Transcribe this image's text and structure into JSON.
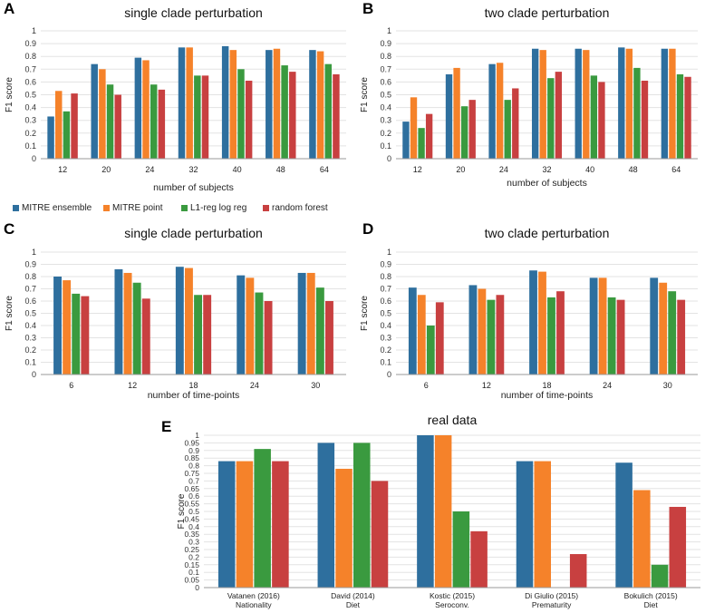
{
  "colors": {
    "MITRE ensemble": "#2e6f9e",
    "MITRE point": "#f5822a",
    "L1-reg log reg": "#3a9a3f",
    "random forest": "#c84040"
  },
  "legend": [
    {
      "name": "MITRE ensemble",
      "color": "#2e6f9e"
    },
    {
      "name": "MITRE point",
      "color": "#f5822a"
    },
    {
      "name": "L1-reg log reg",
      "color": "#3a9a3f"
    },
    {
      "name": "random forest",
      "color": "#c84040"
    }
  ],
  "panels": [
    {
      "letter": "A"
    },
    {
      "letter": "B"
    },
    {
      "letter": "C"
    },
    {
      "letter": "D"
    },
    {
      "letter": "E"
    }
  ],
  "chart_data": [
    {
      "type": "bar",
      "panel": "A",
      "title": "single clade perturbation",
      "xlabel": "number of subjects",
      "ylabel": "F1 score",
      "ylim": [
        0,
        1
      ],
      "yticks": [
        "0",
        "0.1",
        "0.2",
        "0.3",
        "0.4",
        "0.5",
        "0.6",
        "0.7",
        "0.8",
        "0.9",
        "1"
      ],
      "categories": [
        "12",
        "20",
        "24",
        "32",
        "40",
        "48",
        "64"
      ],
      "series": [
        {
          "name": "MITRE ensemble",
          "values": [
            0.33,
            0.74,
            0.79,
            0.87,
            0.88,
            0.85,
            0.85
          ]
        },
        {
          "name": "MITRE point",
          "values": [
            0.53,
            0.7,
            0.77,
            0.87,
            0.85,
            0.86,
            0.84
          ]
        },
        {
          "name": "L1-reg log reg",
          "values": [
            0.37,
            0.58,
            0.58,
            0.65,
            0.7,
            0.73,
            0.74
          ]
        },
        {
          "name": "random forest",
          "values": [
            0.51,
            0.5,
            0.54,
            0.65,
            0.61,
            0.68,
            0.66
          ]
        }
      ]
    },
    {
      "type": "bar",
      "panel": "B",
      "title": "two clade perturbation",
      "xlabel": "number of subjects",
      "ylabel": "F1 score",
      "ylim": [
        0,
        1
      ],
      "yticks": [
        "0",
        "0.1",
        "0.2",
        "0.3",
        "0.4",
        "0.5",
        "0.6",
        "0.7",
        "0.8",
        "0.9",
        "1"
      ],
      "categories": [
        "12",
        "20",
        "24",
        "32",
        "40",
        "48",
        "64"
      ],
      "series": [
        {
          "name": "MITRE ensemble",
          "values": [
            0.29,
            0.66,
            0.74,
            0.86,
            0.86,
            0.87,
            0.86
          ]
        },
        {
          "name": "MITRE point",
          "values": [
            0.48,
            0.71,
            0.75,
            0.85,
            0.85,
            0.86,
            0.86
          ]
        },
        {
          "name": "L1-reg log reg",
          "values": [
            0.24,
            0.41,
            0.46,
            0.63,
            0.65,
            0.71,
            0.66
          ]
        },
        {
          "name": "random forest",
          "values": [
            0.35,
            0.46,
            0.55,
            0.68,
            0.6,
            0.61,
            0.64
          ]
        }
      ]
    },
    {
      "type": "bar",
      "panel": "C",
      "title": "single clade perturbation",
      "xlabel": "number of time-points",
      "ylabel": "F1 score",
      "ylim": [
        0,
        1
      ],
      "yticks": [
        "0",
        "0.1",
        "0.2",
        "0.3",
        "0.4",
        "0.5",
        "0.6",
        "0.7",
        "0.8",
        "0.9",
        "1"
      ],
      "categories": [
        "6",
        "12",
        "18",
        "24",
        "30"
      ],
      "series": [
        {
          "name": "MITRE ensemble",
          "values": [
            0.8,
            0.86,
            0.88,
            0.81,
            0.83
          ]
        },
        {
          "name": "MITRE point",
          "values": [
            0.77,
            0.83,
            0.87,
            0.79,
            0.83
          ]
        },
        {
          "name": "L1-reg log reg",
          "values": [
            0.66,
            0.75,
            0.65,
            0.67,
            0.71
          ]
        },
        {
          "name": "random forest",
          "values": [
            0.64,
            0.62,
            0.65,
            0.6,
            0.6
          ]
        }
      ]
    },
    {
      "type": "bar",
      "panel": "D",
      "title": "two clade perturbation",
      "xlabel": "number of time-points",
      "ylabel": "F1 score",
      "ylim": [
        0,
        1
      ],
      "yticks": [
        "0",
        "0.1",
        "0.2",
        "0.3",
        "0.4",
        "0.5",
        "0.6",
        "0.7",
        "0.8",
        "0.9",
        "1"
      ],
      "categories": [
        "6",
        "12",
        "18",
        "24",
        "30"
      ],
      "series": [
        {
          "name": "MITRE ensemble",
          "values": [
            0.71,
            0.73,
            0.85,
            0.79,
            0.79
          ]
        },
        {
          "name": "MITRE point",
          "values": [
            0.65,
            0.7,
            0.84,
            0.79,
            0.75
          ]
        },
        {
          "name": "L1-reg log reg",
          "values": [
            0.4,
            0.61,
            0.63,
            0.63,
            0.68
          ]
        },
        {
          "name": "random forest",
          "values": [
            0.59,
            0.65,
            0.68,
            0.61,
            0.61
          ]
        }
      ]
    },
    {
      "type": "bar",
      "panel": "E",
      "title": "real data",
      "xlabel": "",
      "ylabel": "F1 score",
      "ylim": [
        0,
        1
      ],
      "yticks": [
        "0",
        "0.05",
        "0.1",
        "0.15",
        "0.2",
        "0.25",
        "0.3",
        "0.35",
        "0.4",
        "0.45",
        "0.5",
        "0.55",
        "0.6",
        "0.65",
        "0.7",
        "0.75",
        "0.8",
        "0.85",
        "0.9",
        "0.95",
        "1"
      ],
      "categories": [
        [
          "Vatanen (2016)",
          "Nationality"
        ],
        [
          "David (2014)",
          "Diet"
        ],
        [
          "Kostic (2015)",
          "Seroconv."
        ],
        [
          "Di Giulio (2015)",
          "Prematurity"
        ],
        [
          "Bokulich (2015)",
          "Diet"
        ]
      ],
      "series": [
        {
          "name": "MITRE ensemble",
          "values": [
            0.83,
            0.95,
            1.0,
            0.83,
            0.82
          ]
        },
        {
          "name": "MITRE point",
          "values": [
            0.83,
            0.78,
            1.0,
            0.83,
            0.64
          ]
        },
        {
          "name": "L1-reg log reg",
          "values": [
            0.91,
            0.95,
            0.5,
            0.0,
            0.15
          ]
        },
        {
          "name": "random forest",
          "values": [
            0.83,
            0.7,
            0.37,
            0.22,
            0.53
          ]
        }
      ]
    }
  ]
}
